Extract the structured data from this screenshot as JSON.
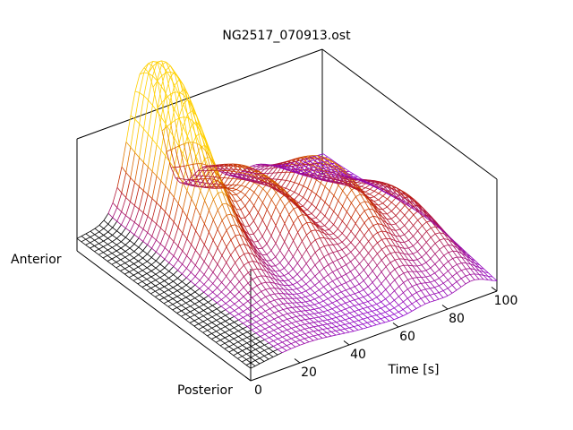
{
  "chart_data": {
    "type": "surface",
    "title": "NG2517_070913.ost",
    "xlabel": "Time [s]",
    "x_ticks": [
      "0",
      "20",
      "40",
      "60",
      "80",
      "100"
    ],
    "xlim": [
      0,
      100
    ],
    "y_end_labels": {
      "near": "Posterior",
      "far": "Anterior"
    },
    "colormap": [
      "#000000",
      "#8a00e0",
      "#c02000",
      "#ffd000"
    ],
    "mesh_lines_time": 55,
    "mesh_lines_position": 40,
    "surface_peaks": [
      {
        "time": 28,
        "position": 0.85,
        "height": 1.0,
        "note": "main anterior peak"
      },
      {
        "time": 52,
        "position": 0.7,
        "height": 0.45
      },
      {
        "time": 72,
        "position": 0.55,
        "height": 0.55
      },
      {
        "time": 90,
        "position": 0.4,
        "height": 0.35
      }
    ]
  }
}
